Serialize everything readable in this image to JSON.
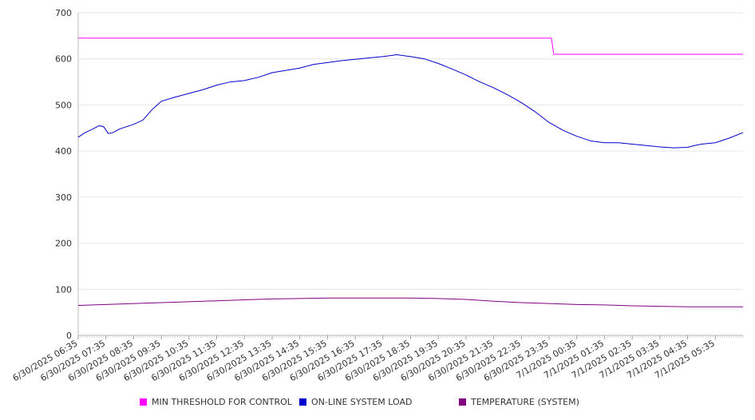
{
  "chart_data": {
    "type": "line",
    "title": "",
    "xlabel": "",
    "ylabel": "",
    "ylim": [
      0,
      700
    ],
    "y_ticks": [
      0,
      100,
      200,
      300,
      400,
      500,
      600,
      700
    ],
    "grid": true,
    "legend_position": "bottom",
    "x_tick_labels": [
      "6/30/2025 06:35",
      "6/30/2025 07:35",
      "6/30/2025 08:35",
      "6/30/2025 09:35",
      "6/30/2025 10:35",
      "6/30/2025 11:35",
      "6/30/2025 12:35",
      "6/30/2025 13:35",
      "6/30/2025 14:35",
      "6/30/2025 15:35",
      "6/30/2025 16:35",
      "6/30/2025 17:35",
      "6/30/2025 18:35",
      "6/30/2025 19:35",
      "6/30/2025 20:35",
      "6/30/2025 21:35",
      "6/30/2025 22:35",
      "6/30/2025 23:35",
      "7/1/2025 00:35",
      "7/1/2025 01:35",
      "7/1/2025 02:35",
      "7/1/2025 03:35",
      "7/1/2025 04:35",
      "7/1/2025 05:35"
    ],
    "x_range": [
      "6/30/2025 06:35",
      "7/1/2025 06:35"
    ],
    "series": [
      {
        "name": "MIN THRESHOLD FOR CONTROL",
        "color": "#ff00ff",
        "points": [
          [
            "6/30/2025 06:35",
            645
          ],
          [
            "6/30/2025 23:40",
            645
          ],
          [
            "6/30/2025 23:45",
            610
          ],
          [
            "7/1/2025 06:35",
            610
          ]
        ]
      },
      {
        "name": "ON-LINE SYSTEM LOAD",
        "color": "#0000cc",
        "points": [
          [
            "6/30/2025 06:35",
            430
          ],
          [
            "6/30/2025 06:50",
            440
          ],
          [
            "6/30/2025 07:05",
            447
          ],
          [
            "6/30/2025 07:20",
            455
          ],
          [
            "6/30/2025 07:30",
            453
          ],
          [
            "6/30/2025 07:40",
            438
          ],
          [
            "6/30/2025 07:50",
            440
          ],
          [
            "6/30/2025 08:05",
            448
          ],
          [
            "6/30/2025 08:35",
            458
          ],
          [
            "6/30/2025 08:55",
            467
          ],
          [
            "6/30/2025 09:15",
            490
          ],
          [
            "6/30/2025 09:35",
            508
          ],
          [
            "6/30/2025 10:05",
            517
          ],
          [
            "6/30/2025 10:35",
            525
          ],
          [
            "6/30/2025 11:05",
            533
          ],
          [
            "6/30/2025 11:35",
            543
          ],
          [
            "6/30/2025 12:05",
            550
          ],
          [
            "6/30/2025 12:35",
            553
          ],
          [
            "6/30/2025 13:05",
            560
          ],
          [
            "6/30/2025 13:35",
            570
          ],
          [
            "6/30/2025 14:05",
            575
          ],
          [
            "6/30/2025 14:35",
            580
          ],
          [
            "6/30/2025 15:05",
            588
          ],
          [
            "6/30/2025 15:35",
            592
          ],
          [
            "6/30/2025 16:05",
            596
          ],
          [
            "6/30/2025 16:35",
            599
          ],
          [
            "6/30/2025 17:05",
            602
          ],
          [
            "6/30/2025 17:35",
            605
          ],
          [
            "6/30/2025 18:05",
            609
          ],
          [
            "6/30/2025 18:35",
            605
          ],
          [
            "6/30/2025 19:05",
            600
          ],
          [
            "6/30/2025 19:35",
            590
          ],
          [
            "6/30/2025 20:05",
            578
          ],
          [
            "6/30/2025 20:35",
            565
          ],
          [
            "6/30/2025 21:05",
            550
          ],
          [
            "6/30/2025 21:35",
            537
          ],
          [
            "6/30/2025 22:05",
            522
          ],
          [
            "6/30/2025 22:35",
            505
          ],
          [
            "6/30/2025 23:05",
            485
          ],
          [
            "6/30/2025 23:35",
            462
          ],
          [
            "7/1/2025 00:05",
            445
          ],
          [
            "7/1/2025 00:35",
            432
          ],
          [
            "7/1/2025 01:05",
            422
          ],
          [
            "7/1/2025 01:35",
            418
          ],
          [
            "7/1/2025 02:05",
            418
          ],
          [
            "7/1/2025 02:35",
            415
          ],
          [
            "7/1/2025 03:05",
            412
          ],
          [
            "7/1/2025 03:35",
            409
          ],
          [
            "7/1/2025 04:05",
            407
          ],
          [
            "7/1/2025 04:35",
            408
          ],
          [
            "7/1/2025 04:50",
            412
          ],
          [
            "7/1/2025 05:05",
            415
          ],
          [
            "7/1/2025 05:35",
            418
          ],
          [
            "7/1/2025 06:05",
            428
          ],
          [
            "7/1/2025 06:35",
            440
          ]
        ]
      },
      {
        "name": "TEMPERATURE (SYSTEM)",
        "color": "#800080",
        "points": [
          [
            "6/30/2025 06:35",
            65
          ],
          [
            "6/30/2025 07:35",
            67
          ],
          [
            "6/30/2025 08:35",
            69
          ],
          [
            "6/30/2025 09:35",
            71
          ],
          [
            "6/30/2025 10:35",
            73
          ],
          [
            "6/30/2025 11:35",
            75
          ],
          [
            "6/30/2025 12:35",
            77
          ],
          [
            "6/30/2025 13:35",
            79
          ],
          [
            "6/30/2025 14:35",
            80
          ],
          [
            "6/30/2025 15:35",
            81
          ],
          [
            "6/30/2025 16:35",
            81
          ],
          [
            "6/30/2025 17:35",
            81
          ],
          [
            "6/30/2025 18:35",
            81
          ],
          [
            "6/30/2025 19:35",
            80
          ],
          [
            "6/30/2025 20:35",
            78
          ],
          [
            "6/30/2025 21:35",
            74
          ],
          [
            "6/30/2025 22:35",
            71
          ],
          [
            "6/30/2025 23:35",
            69
          ],
          [
            "7/1/2025 00:35",
            67
          ],
          [
            "7/1/2025 01:35",
            66
          ],
          [
            "7/1/2025 02:35",
            64
          ],
          [
            "7/1/2025 03:35",
            63
          ],
          [
            "7/1/2025 04:35",
            62
          ],
          [
            "7/1/2025 05:35",
            62
          ],
          [
            "7/1/2025 06:35",
            62
          ]
        ]
      }
    ]
  }
}
